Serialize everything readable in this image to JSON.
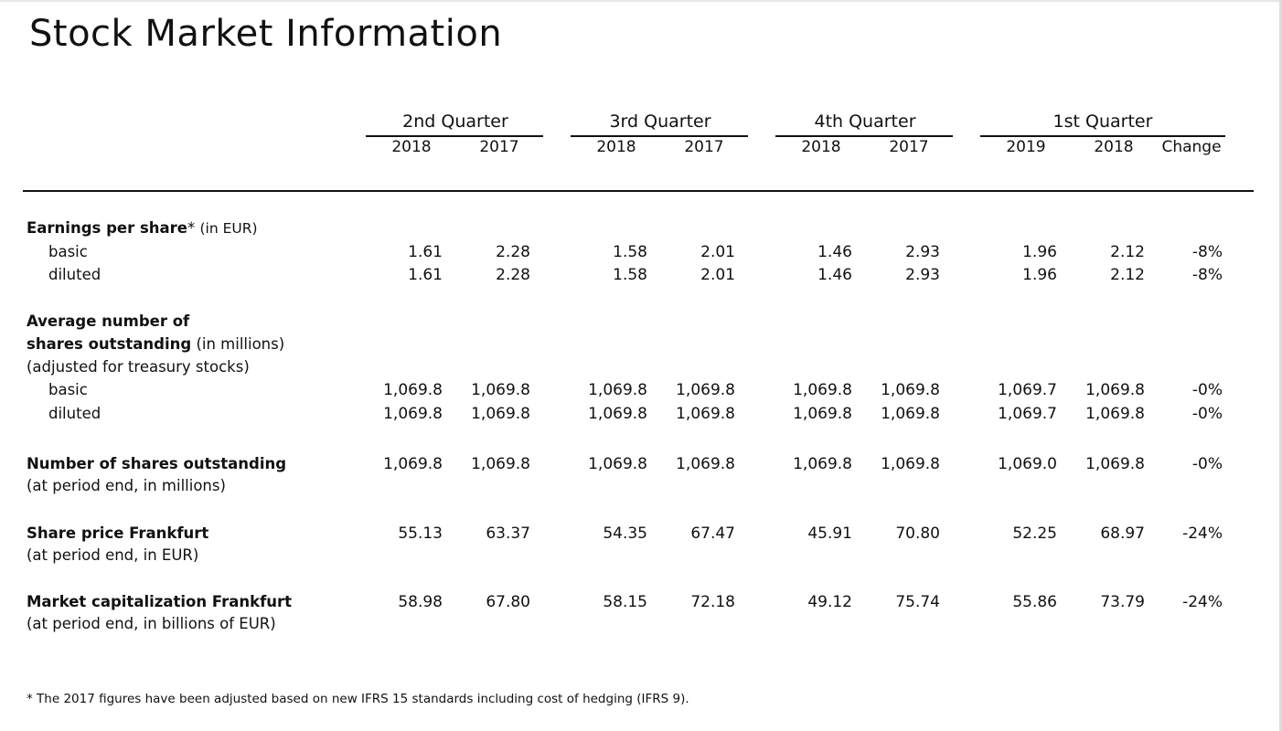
{
  "title": "Stock Market Information",
  "quarters": [
    {
      "label": "2nd Quarter",
      "years": [
        "2018",
        "2017"
      ]
    },
    {
      "label": "3rd Quarter",
      "years": [
        "2018",
        "2017"
      ]
    },
    {
      "label": "4th Quarter",
      "years": [
        "2018",
        "2017"
      ]
    },
    {
      "label": "1st Quarter",
      "years": [
        "2019",
        "2018"
      ],
      "change": "Change"
    }
  ],
  "sections": {
    "eps": {
      "title": "Earnings per share",
      "asterisk": "*",
      "unit": "(in EUR)",
      "rows": [
        {
          "label": "basic",
          "values": [
            "1.61",
            "2.28",
            "1.58",
            "2.01",
            "1.46",
            "2.93",
            "1.96",
            "2.12",
            "-8%"
          ]
        },
        {
          "label": "diluted",
          "values": [
            "1.61",
            "2.28",
            "1.58",
            "2.01",
            "1.46",
            "2.93",
            "1.96",
            "2.12",
            "-8%"
          ]
        }
      ]
    },
    "avg": {
      "line1": "Average number of",
      "line2_bold": "shares outstanding",
      "line2_unit": "(in millions)",
      "line3": "(adjusted for treasury stocks)",
      "rows": [
        {
          "label": "basic",
          "values": [
            "1,069.8",
            "1,069.8",
            "1,069.8",
            "1,069.8",
            "1,069.8",
            "1,069.8",
            "1,069.7",
            "1,069.8",
            "-0%"
          ]
        },
        {
          "label": "diluted",
          "values": [
            "1,069.8",
            "1,069.8",
            "1,069.8",
            "1,069.8",
            "1,069.8",
            "1,069.8",
            "1,069.7",
            "1,069.8",
            "-0%"
          ]
        }
      ]
    },
    "nso": {
      "title": "Number of shares outstanding",
      "sub": "(at period end, in millions)",
      "values": [
        "1,069.8",
        "1,069.8",
        "1,069.8",
        "1,069.8",
        "1,069.8",
        "1,069.8",
        "1,069.0",
        "1,069.8",
        "-0%"
      ]
    },
    "price": {
      "title": "Share price Frankfurt",
      "sub": "(at period end, in EUR)",
      "values": [
        "55.13",
        "63.37",
        "54.35",
        "67.47",
        "45.91",
        "70.80",
        "52.25",
        "68.97",
        "-24%"
      ]
    },
    "mcap": {
      "title": "Market capitalization Frankfurt",
      "sub": "(at period end, in billions of EUR)",
      "values": [
        "58.98",
        "67.80",
        "58.15",
        "72.18",
        "49.12",
        "75.74",
        "55.86",
        "73.79",
        "-24%"
      ]
    }
  },
  "footnote": "* The 2017 figures have been adjusted based on new IFRS 15 standards including cost of hedging (IFRS 9)."
}
